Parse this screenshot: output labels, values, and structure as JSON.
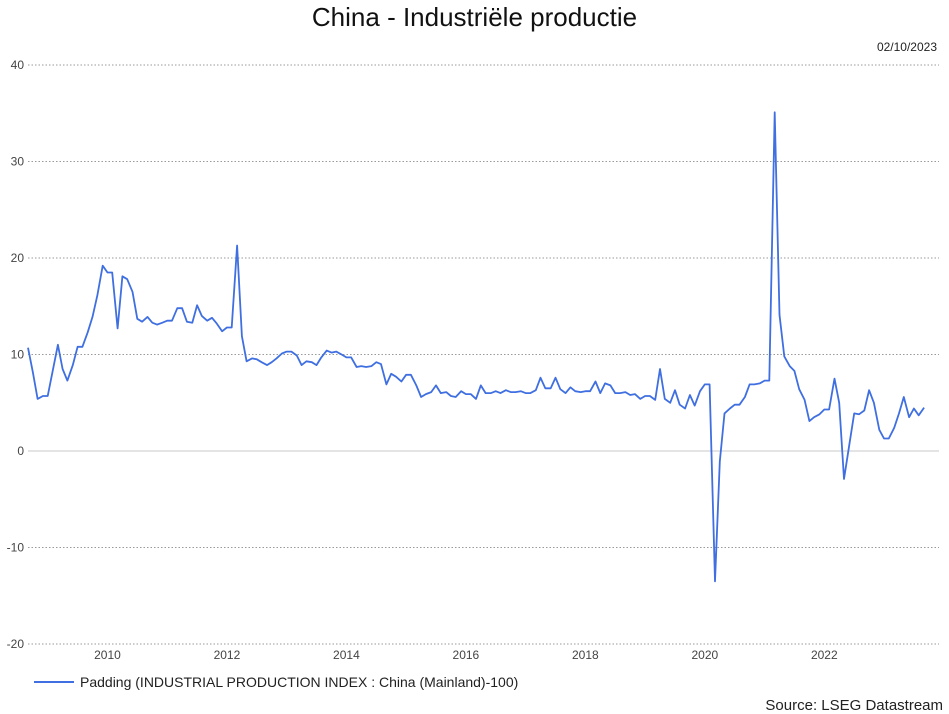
{
  "chart_data": {
    "type": "line",
    "title": "China - Industriële productie",
    "date_label": "02/10/2023",
    "source": "Source: LSEG Datastream",
    "xlabel": "",
    "ylabel": "",
    "ylim": [
      -20,
      40
    ],
    "xlim": [
      2008.67,
      2023.92
    ],
    "yticks": [
      -20,
      -10,
      0,
      10,
      20,
      30,
      40
    ],
    "xticks": [
      2010,
      2012,
      2014,
      2016,
      2018,
      2020,
      2022
    ],
    "grid": true,
    "legend_position": "bottom-left",
    "series": [
      {
        "name": "Padding (INDUSTRIAL PRODUCTION INDEX : China (Mainland)-100)",
        "color": "#3f6fe0",
        "points": [
          [
            2008.67,
            10.7
          ],
          [
            2008.75,
            8.2
          ],
          [
            2008.83,
            5.4
          ],
          [
            2008.92,
            5.7
          ],
          [
            2009.0,
            5.7
          ],
          [
            2009.17,
            11.0
          ],
          [
            2009.25,
            8.5
          ],
          [
            2009.33,
            7.3
          ],
          [
            2009.42,
            8.9
          ],
          [
            2009.5,
            10.8
          ],
          [
            2009.58,
            10.8
          ],
          [
            2009.67,
            12.3
          ],
          [
            2009.75,
            13.9
          ],
          [
            2009.83,
            16.1
          ],
          [
            2009.92,
            19.2
          ],
          [
            2010.0,
            18.5
          ],
          [
            2010.08,
            18.5
          ],
          [
            2010.17,
            12.7
          ],
          [
            2010.25,
            18.1
          ],
          [
            2010.33,
            17.8
          ],
          [
            2010.42,
            16.5
          ],
          [
            2010.5,
            13.7
          ],
          [
            2010.58,
            13.4
          ],
          [
            2010.67,
            13.9
          ],
          [
            2010.75,
            13.3
          ],
          [
            2010.83,
            13.1
          ],
          [
            2010.92,
            13.3
          ],
          [
            2011.0,
            13.5
          ],
          [
            2011.08,
            13.5
          ],
          [
            2011.17,
            14.8
          ],
          [
            2011.25,
            14.8
          ],
          [
            2011.33,
            13.4
          ],
          [
            2011.42,
            13.3
          ],
          [
            2011.5,
            15.1
          ],
          [
            2011.58,
            14.0
          ],
          [
            2011.67,
            13.5
          ],
          [
            2011.75,
            13.8
          ],
          [
            2011.83,
            13.2
          ],
          [
            2011.92,
            12.4
          ],
          [
            2012.0,
            12.8
          ],
          [
            2012.08,
            12.8
          ],
          [
            2012.17,
            21.3
          ],
          [
            2012.25,
            11.9
          ],
          [
            2012.33,
            9.3
          ],
          [
            2012.42,
            9.6
          ],
          [
            2012.5,
            9.5
          ],
          [
            2012.58,
            9.2
          ],
          [
            2012.67,
            8.9
          ],
          [
            2012.75,
            9.2
          ],
          [
            2012.83,
            9.6
          ],
          [
            2012.92,
            10.1
          ],
          [
            2013.0,
            10.3
          ],
          [
            2013.08,
            10.3
          ],
          [
            2013.17,
            9.9
          ],
          [
            2013.25,
            8.9
          ],
          [
            2013.33,
            9.3
          ],
          [
            2013.42,
            9.2
          ],
          [
            2013.5,
            8.9
          ],
          [
            2013.58,
            9.7
          ],
          [
            2013.67,
            10.4
          ],
          [
            2013.75,
            10.2
          ],
          [
            2013.83,
            10.3
          ],
          [
            2013.92,
            10.0
          ],
          [
            2014.0,
            9.7
          ],
          [
            2014.08,
            9.7
          ],
          [
            2014.17,
            8.7
          ],
          [
            2014.25,
            8.8
          ],
          [
            2014.33,
            8.7
          ],
          [
            2014.42,
            8.8
          ],
          [
            2014.5,
            9.2
          ],
          [
            2014.58,
            9.0
          ],
          [
            2014.67,
            6.9
          ],
          [
            2014.75,
            8.0
          ],
          [
            2014.83,
            7.7
          ],
          [
            2014.92,
            7.2
          ],
          [
            2015.0,
            7.9
          ],
          [
            2015.08,
            7.9
          ],
          [
            2015.17,
            6.8
          ],
          [
            2015.25,
            5.6
          ],
          [
            2015.33,
            5.9
          ],
          [
            2015.42,
            6.1
          ],
          [
            2015.5,
            6.8
          ],
          [
            2015.58,
            6.0
          ],
          [
            2015.67,
            6.1
          ],
          [
            2015.75,
            5.7
          ],
          [
            2015.83,
            5.6
          ],
          [
            2015.92,
            6.2
          ],
          [
            2016.0,
            5.9
          ],
          [
            2016.08,
            5.9
          ],
          [
            2016.17,
            5.4
          ],
          [
            2016.25,
            6.8
          ],
          [
            2016.33,
            6.0
          ],
          [
            2016.42,
            6.0
          ],
          [
            2016.5,
            6.2
          ],
          [
            2016.58,
            6.0
          ],
          [
            2016.67,
            6.3
          ],
          [
            2016.75,
            6.1
          ],
          [
            2016.83,
            6.1
          ],
          [
            2016.92,
            6.2
          ],
          [
            2017.0,
            6.0
          ],
          [
            2017.08,
            6.0
          ],
          [
            2017.17,
            6.3
          ],
          [
            2017.25,
            7.6
          ],
          [
            2017.33,
            6.5
          ],
          [
            2017.42,
            6.5
          ],
          [
            2017.5,
            7.6
          ],
          [
            2017.58,
            6.4
          ],
          [
            2017.67,
            6.0
          ],
          [
            2017.75,
            6.6
          ],
          [
            2017.83,
            6.2
          ],
          [
            2017.92,
            6.1
          ],
          [
            2018.0,
            6.2
          ],
          [
            2018.08,
            6.2
          ],
          [
            2018.17,
            7.2
          ],
          [
            2018.25,
            6.0
          ],
          [
            2018.33,
            7.0
          ],
          [
            2018.42,
            6.8
          ],
          [
            2018.5,
            6.0
          ],
          [
            2018.58,
            6.0
          ],
          [
            2018.67,
            6.1
          ],
          [
            2018.75,
            5.8
          ],
          [
            2018.83,
            5.9
          ],
          [
            2018.92,
            5.4
          ],
          [
            2019.0,
            5.7
          ],
          [
            2019.08,
            5.7
          ],
          [
            2019.17,
            5.3
          ],
          [
            2019.25,
            8.5
          ],
          [
            2019.33,
            5.4
          ],
          [
            2019.42,
            5.0
          ],
          [
            2019.5,
            6.3
          ],
          [
            2019.58,
            4.8
          ],
          [
            2019.67,
            4.4
          ],
          [
            2019.75,
            5.8
          ],
          [
            2019.83,
            4.7
          ],
          [
            2019.92,
            6.2
          ],
          [
            2020.0,
            6.9
          ],
          [
            2020.08,
            6.9
          ],
          [
            2020.17,
            -13.5
          ],
          [
            2020.25,
            -1.1
          ],
          [
            2020.33,
            3.9
          ],
          [
            2020.42,
            4.4
          ],
          [
            2020.5,
            4.8
          ],
          [
            2020.58,
            4.8
          ],
          [
            2020.67,
            5.6
          ],
          [
            2020.75,
            6.9
          ],
          [
            2020.83,
            6.9
          ],
          [
            2020.92,
            7.0
          ],
          [
            2021.0,
            7.3
          ],
          [
            2021.08,
            7.3
          ],
          [
            2021.17,
            35.1
          ],
          [
            2021.25,
            14.1
          ],
          [
            2021.33,
            9.8
          ],
          [
            2021.42,
            8.8
          ],
          [
            2021.5,
            8.3
          ],
          [
            2021.58,
            6.4
          ],
          [
            2021.67,
            5.3
          ],
          [
            2021.75,
            3.1
          ],
          [
            2021.83,
            3.5
          ],
          [
            2021.92,
            3.8
          ],
          [
            2022.0,
            4.3
          ],
          [
            2022.08,
            4.3
          ],
          [
            2022.17,
            7.5
          ],
          [
            2022.25,
            5.0
          ],
          [
            2022.33,
            -2.9
          ],
          [
            2022.42,
            0.7
          ],
          [
            2022.5,
            3.9
          ],
          [
            2022.58,
            3.8
          ],
          [
            2022.67,
            4.2
          ],
          [
            2022.75,
            6.3
          ],
          [
            2022.83,
            5.0
          ],
          [
            2022.92,
            2.2
          ],
          [
            2023.0,
            1.3
          ],
          [
            2023.08,
            1.3
          ],
          [
            2023.17,
            2.4
          ],
          [
            2023.25,
            3.9
          ],
          [
            2023.33,
            5.6
          ],
          [
            2023.42,
            3.5
          ],
          [
            2023.5,
            4.4
          ],
          [
            2023.58,
            3.7
          ],
          [
            2023.67,
            4.5
          ]
        ]
      }
    ]
  }
}
